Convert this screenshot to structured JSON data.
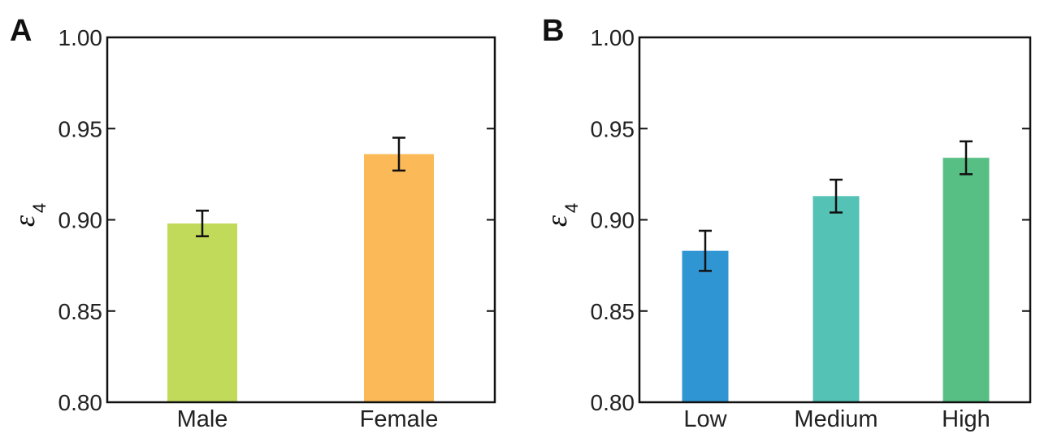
{
  "chart_data": [
    {
      "panel": "A",
      "type": "bar",
      "ylabel": "ε4",
      "ylabel_main": "ε",
      "ylabel_sub": "4",
      "ylim": [
        0.8,
        1.0
      ],
      "yticks": [
        "0.80",
        "0.85",
        "0.90",
        "0.95",
        "1.00"
      ],
      "categories": [
        "Male",
        "Female"
      ],
      "values": [
        0.898,
        0.936
      ],
      "errors": [
        0.007,
        0.009
      ],
      "colors": [
        "#c2da5a",
        "#fbb957"
      ],
      "grid": false,
      "legend": "none"
    },
    {
      "panel": "B",
      "type": "bar",
      "ylabel": "ε4",
      "ylabel_main": "ε",
      "ylabel_sub": "4",
      "ylim": [
        0.8,
        1.0
      ],
      "yticks": [
        "0.80",
        "0.85",
        "0.90",
        "0.95",
        "1.00"
      ],
      "categories": [
        "Low",
        "Medium",
        "High"
      ],
      "values": [
        0.883,
        0.913,
        0.934
      ],
      "errors": [
        0.011,
        0.009,
        0.009
      ],
      "colors": [
        "#3096d3",
        "#54c2b5",
        "#58bf84"
      ],
      "grid": false,
      "legend": "none"
    }
  ]
}
